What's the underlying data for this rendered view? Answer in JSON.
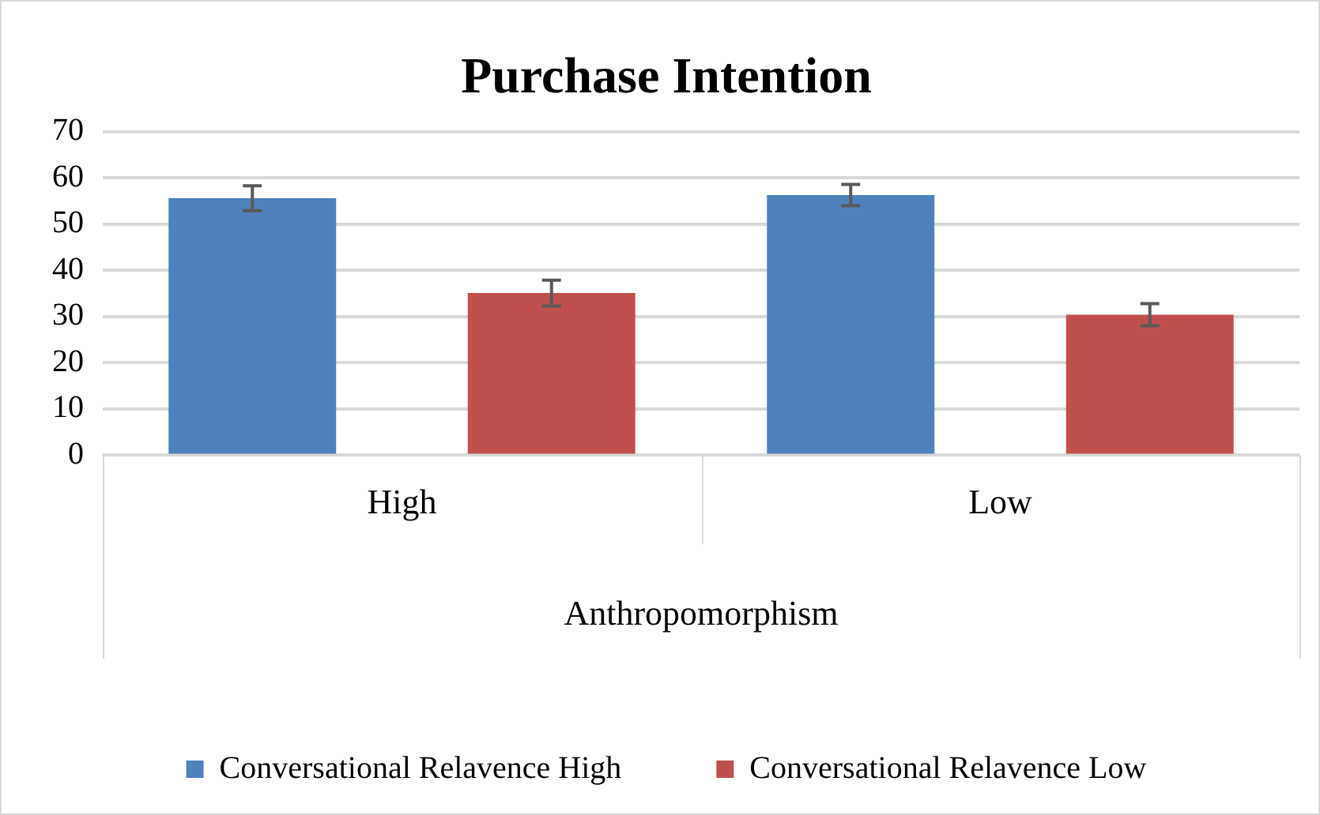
{
  "chart_data": {
    "type": "bar",
    "title": "Purchase Intention",
    "xlabel": "Anthropomorphism",
    "categories": [
      "High",
      "Low"
    ],
    "series": [
      {
        "name": "Conversational Relavence High",
        "color": "#4f81bd",
        "values": [
          55.6,
          56.3
        ],
        "errors": [
          2.7,
          2.3
        ]
      },
      {
        "name": "Conversational Relavence Low",
        "color": "#c0504d",
        "values": [
          35.1,
          30.4
        ],
        "errors": [
          2.8,
          2.4
        ]
      }
    ],
    "ylim": [
      0,
      70
    ],
    "yticks": [
      0,
      10,
      20,
      30,
      40,
      50,
      60,
      70
    ],
    "grid": "y",
    "legend": "bottom"
  }
}
